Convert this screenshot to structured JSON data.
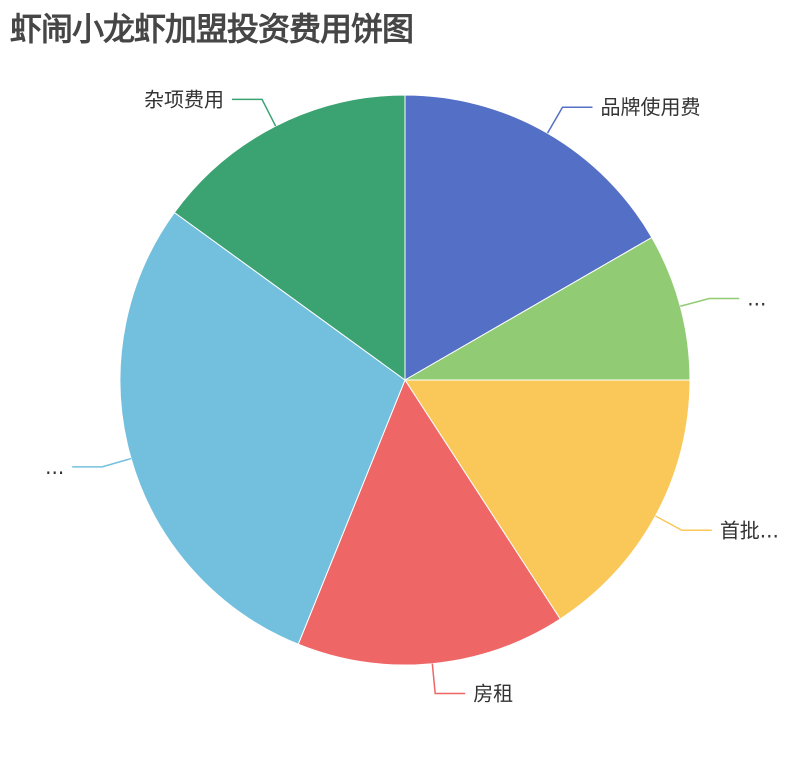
{
  "chart_data": {
    "type": "pie",
    "title": "虾闹小龙虾加盟投资费用饼图",
    "start_angle": "12 o'clock, clockwise",
    "slices": [
      {
        "label": "品牌使用费",
        "value": 3.0,
        "color": "#5470c6"
      },
      {
        "label": "...",
        "value": 1.5,
        "color": "#91cc75"
      },
      {
        "label": "首批...",
        "value": 2.85,
        "color": "#fac858"
      },
      {
        "label": "房租",
        "value": 2.75,
        "color": "#ee6666"
      },
      {
        "label": "...",
        "value": 5.2,
        "color": "#73c0de"
      },
      {
        "label": "杂项费用",
        "value": 2.7,
        "color": "#3ba272"
      }
    ],
    "legend": "none"
  }
}
